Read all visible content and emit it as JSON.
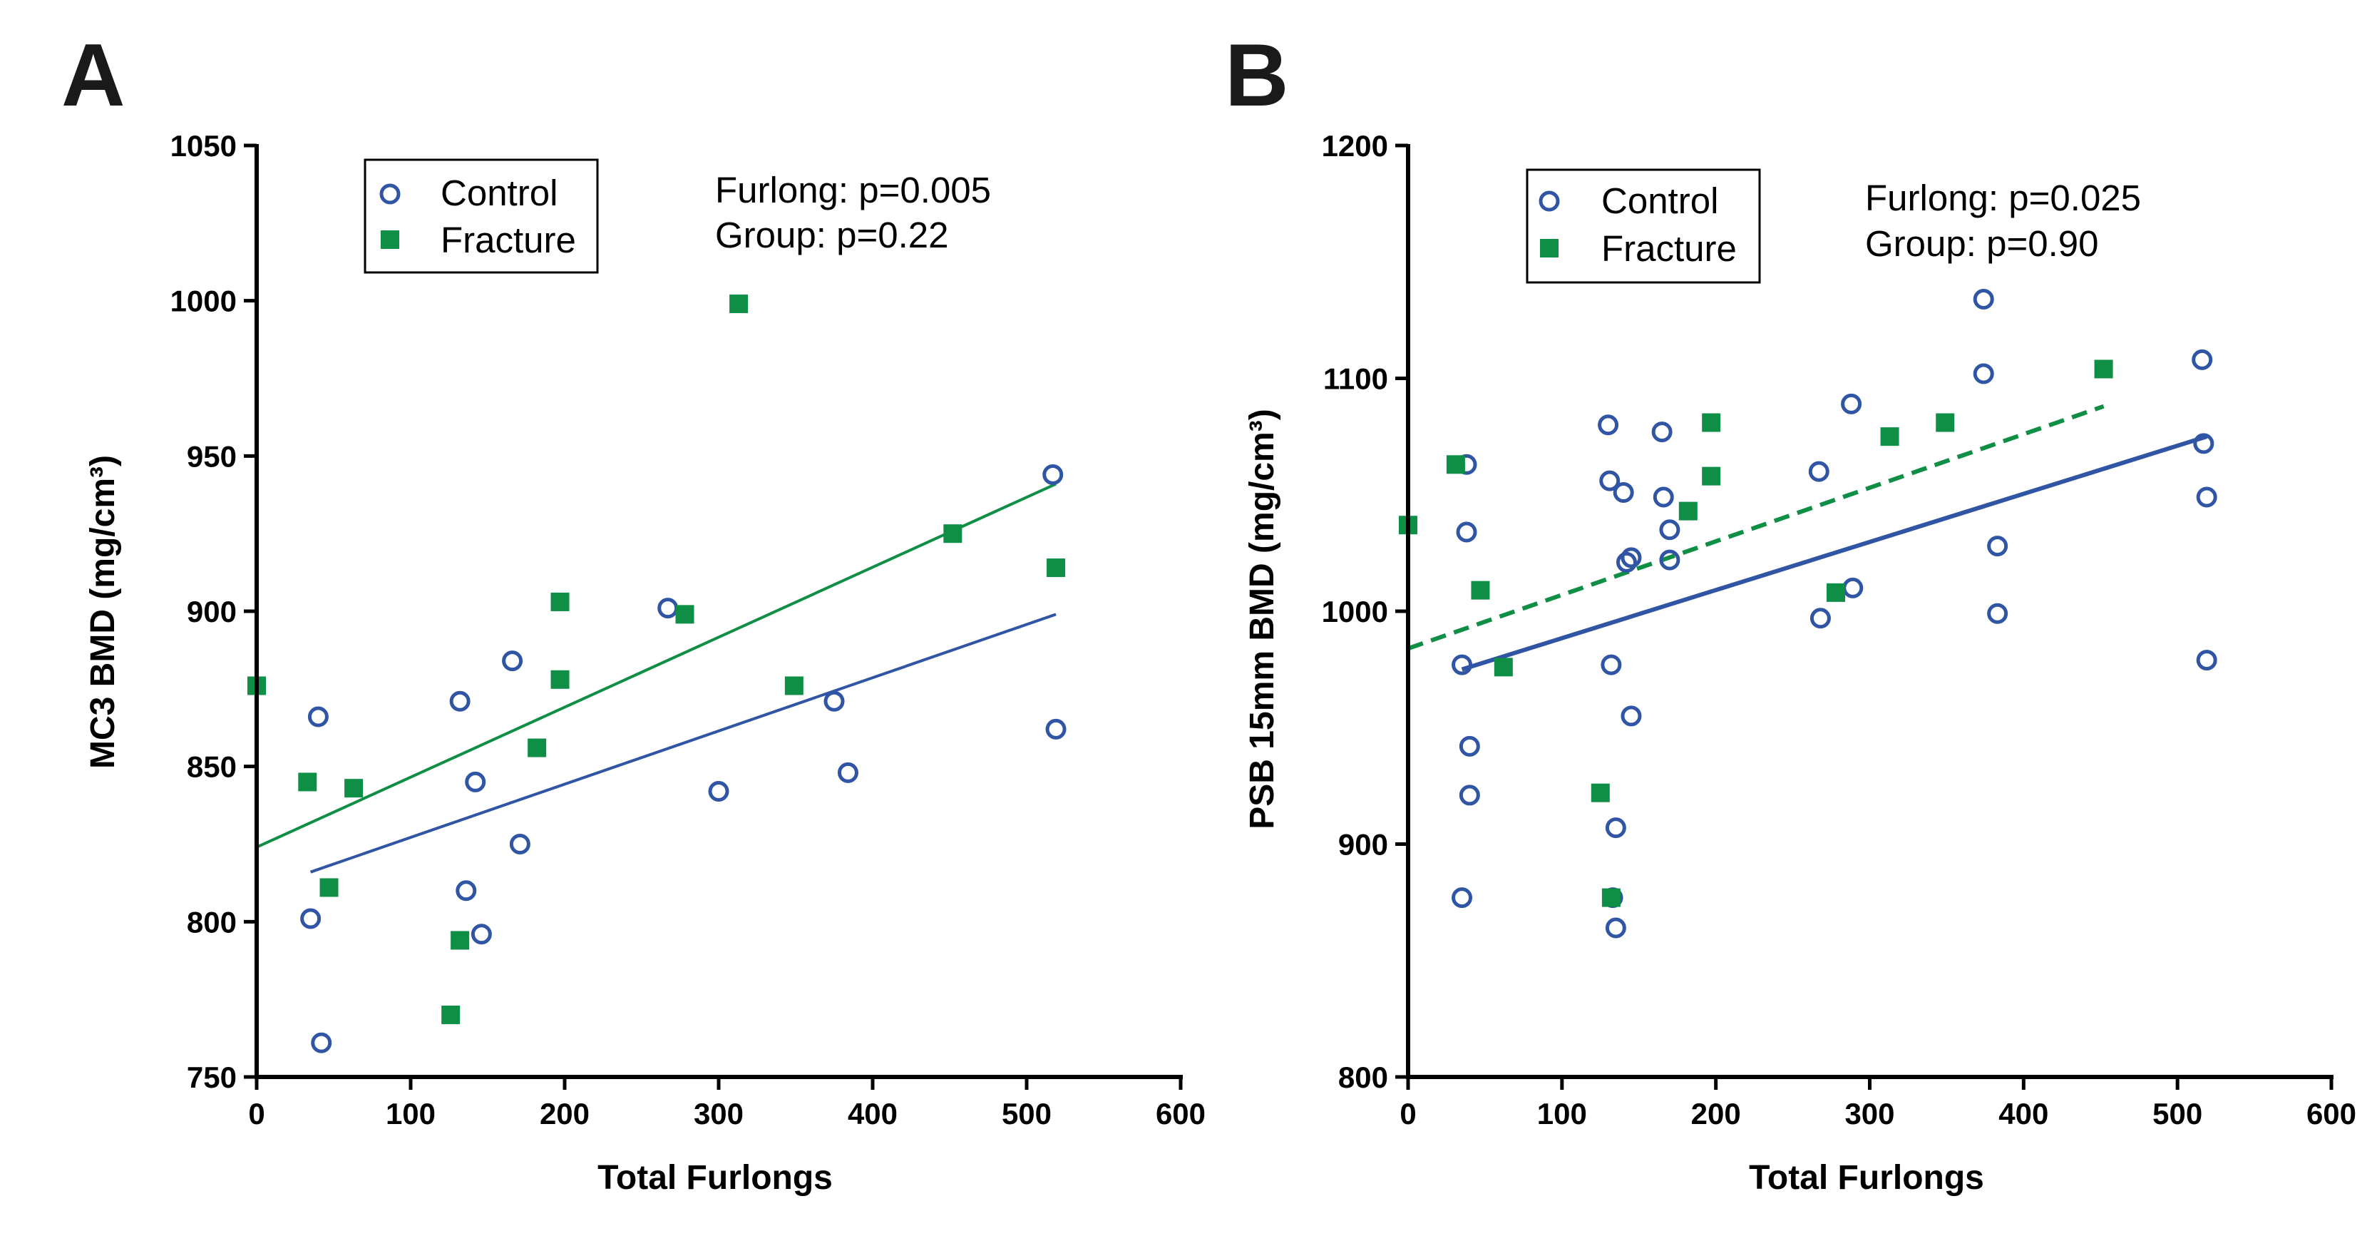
{
  "colors": {
    "control": "#2f55a4",
    "fracture": "#0f8f45",
    "axis": "#000000"
  },
  "chart_data": [
    {
      "panel": "A",
      "type": "scatter",
      "xlabel": "Total Furlongs",
      "ylabel": "MC3 BMD (mg/cm³)",
      "xlim": [
        0,
        600
      ],
      "ylim": [
        750,
        1050
      ],
      "xticks": [
        "0",
        "100",
        "200",
        "300",
        "400",
        "500",
        "600"
      ],
      "yticks": [
        "750",
        "800",
        "850",
        "900",
        "950",
        "1000",
        "1050"
      ],
      "legend": {
        "position": "top-left",
        "entries": [
          "Control",
          "Fracture"
        ]
      },
      "annotations": [
        "Furlong: p=0.005",
        "Group: p=0.22"
      ],
      "series": [
        {
          "name": "Control",
          "marker": "open-circle",
          "points": [
            [
              35,
              801
            ],
            [
              40,
              866
            ],
            [
              42,
              761
            ],
            [
              132,
              871
            ],
            [
              136,
              810
            ],
            [
              142,
              845
            ],
            [
              146,
              796
            ],
            [
              166,
              884
            ],
            [
              171,
              825
            ],
            [
              267,
              901
            ],
            [
              300,
              842
            ],
            [
              375,
              871
            ],
            [
              384,
              848
            ],
            [
              517,
              944
            ],
            [
              519,
              862
            ]
          ],
          "fit": {
            "style": "solid",
            "x": [
              35,
              519
            ],
            "y": [
              816,
              899
            ]
          }
        },
        {
          "name": "Fracture",
          "marker": "filled-square",
          "points": [
            [
              0,
              876
            ],
            [
              33,
              845
            ],
            [
              47,
              811
            ],
            [
              63,
              843
            ],
            [
              126,
              770
            ],
            [
              132,
              794
            ],
            [
              182,
              856
            ],
            [
              197,
              878
            ],
            [
              197,
              903
            ],
            [
              278,
              899
            ],
            [
              313,
              999
            ],
            [
              349,
              876
            ],
            [
              452,
              925
            ],
            [
              519,
              914
            ]
          ],
          "fit": {
            "style": "solid",
            "x": [
              0,
              519
            ],
            "y": [
              824,
              941
            ]
          }
        }
      ]
    },
    {
      "panel": "B",
      "type": "scatter",
      "xlabel": "Total Furlongs",
      "ylabel": "PSB 15mm BMD (mg/cm³)",
      "xlim": [
        0,
        600
      ],
      "ylim": [
        800,
        1200
      ],
      "xticks": [
        "0",
        "100",
        "200",
        "300",
        "400",
        "500",
        "600"
      ],
      "yticks": [
        "800",
        "900",
        "1000",
        "1100",
        "1200"
      ],
      "legend": {
        "position": "top-left",
        "entries": [
          "Control",
          "Fracture"
        ]
      },
      "annotations": [
        "Furlong: p=0.025",
        "Group: p=0.90"
      ],
      "series": [
        {
          "name": "Control",
          "marker": "open-circle",
          "points": [
            [
              35,
              977
            ],
            [
              35,
              877
            ],
            [
              38,
              1063
            ],
            [
              38,
              1034
            ],
            [
              40,
              942
            ],
            [
              40,
              921
            ],
            [
              130,
              1080
            ],
            [
              131,
              1056
            ],
            [
              132,
              977
            ],
            [
              133,
              877
            ],
            [
              135,
              907
            ],
            [
              135,
              864
            ],
            [
              140,
              1051
            ],
            [
              142,
              1021
            ],
            [
              145,
              1023
            ],
            [
              145,
              955
            ],
            [
              165,
              1077
            ],
            [
              166,
              1049
            ],
            [
              170,
              1035
            ],
            [
              170,
              1022
            ],
            [
              267,
              1060
            ],
            [
              268,
              997
            ],
            [
              288,
              1089
            ],
            [
              289,
              1010
            ],
            [
              374,
              1134
            ],
            [
              374,
              1102
            ],
            [
              383,
              1028
            ],
            [
              383,
              999
            ],
            [
              516,
              1108
            ],
            [
              517,
              1072
            ],
            [
              519,
              1049
            ],
            [
              519,
              979
            ]
          ],
          "fit": {
            "style": "solid",
            "x": [
              35,
              519
            ],
            "y": [
              975,
              1075
            ]
          }
        },
        {
          "name": "Fracture",
          "marker": "filled-square",
          "points": [
            [
              0,
              1037
            ],
            [
              31,
              1063
            ],
            [
              47,
              1009
            ],
            [
              62,
              976
            ],
            [
              125,
              922
            ],
            [
              132,
              877
            ],
            [
              182,
              1043
            ],
            [
              197,
              1081
            ],
            [
              197,
              1058
            ],
            [
              278,
              1008
            ],
            [
              313,
              1075
            ],
            [
              349,
              1081
            ],
            [
              452,
              1104
            ]
          ],
          "fit": {
            "style": "dashed",
            "x": [
              0,
              452
            ],
            "y": [
              984,
              1088
            ]
          }
        }
      ]
    }
  ]
}
